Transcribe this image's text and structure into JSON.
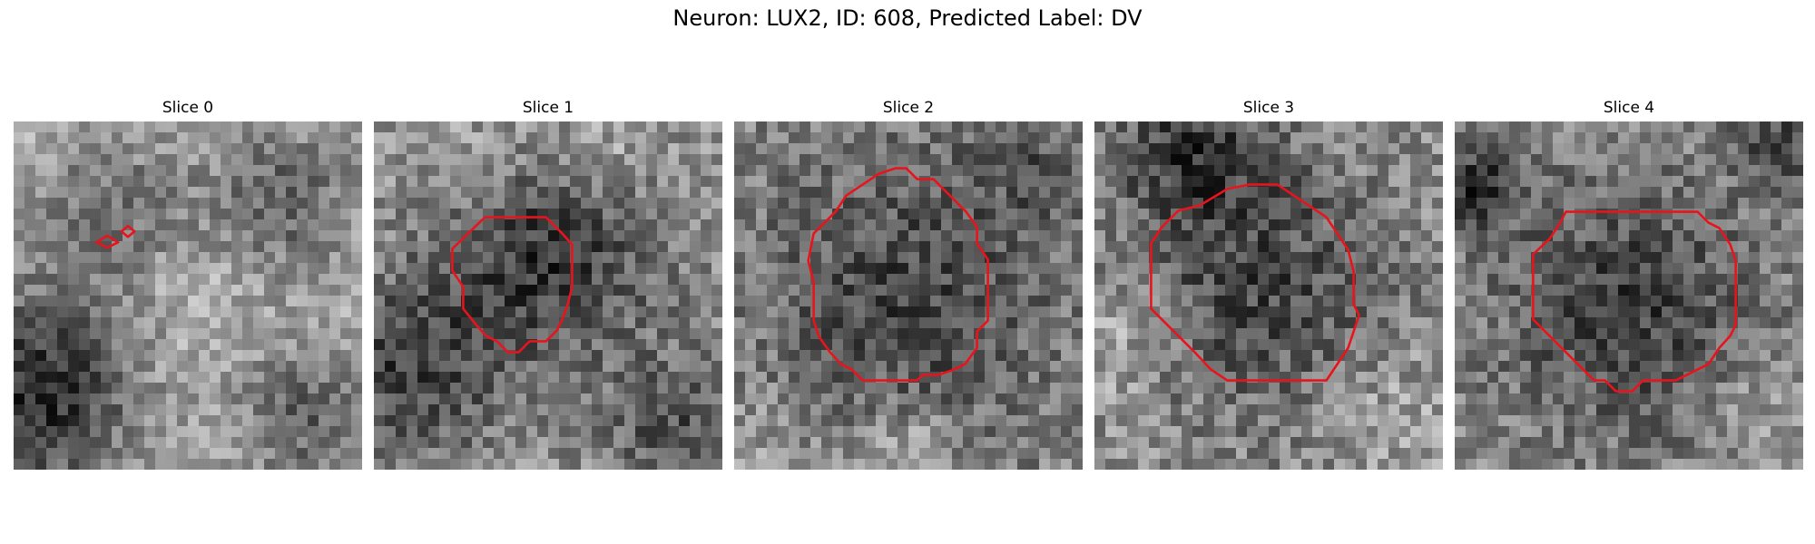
{
  "figure": {
    "title": "Neuron: LUX2, ID: 608, Predicted Label: DV"
  },
  "panels": [
    {
      "title": "Slice 0",
      "seed": 11,
      "contour_color": "#e8141c"
    },
    {
      "title": "Slice 1",
      "seed": 23,
      "contour_color": "#e8141c"
    },
    {
      "title": "Slice 2",
      "seed": 37,
      "contour_color": "#e8141c"
    },
    {
      "title": "Slice 3",
      "seed": 53,
      "contour_color": "#e8141c"
    },
    {
      "title": "Slice 4",
      "seed": 71,
      "contour_color": "#e8141c"
    }
  ],
  "image_style": {
    "colormap": "gray",
    "grid_cells": 32
  }
}
